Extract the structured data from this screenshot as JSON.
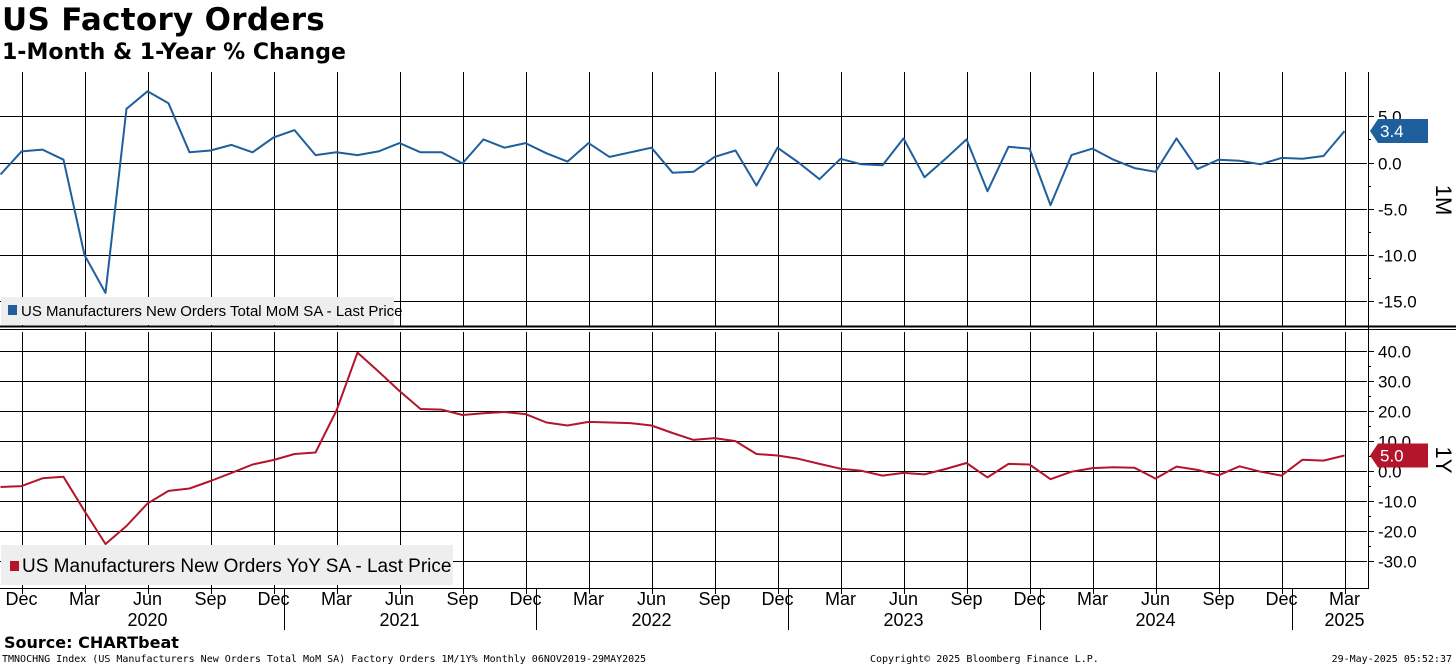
{
  "chart_data": [
    {
      "type": "line",
      "title": "US Factory Orders",
      "subtitle": "1-Month & 1-Year % Change",
      "panel_label": "1M",
      "legend": "US Manufacturers New Orders Total MoM SA - Last Price",
      "color": "#1f5f9e",
      "last_value_label": "3.4",
      "last_value": 3.4,
      "ylim": [
        -18,
        10
      ],
      "yticks": [
        5,
        0,
        -5,
        -10,
        -15
      ],
      "ytick_labels": [
        "5.0",
        "0.0",
        "-5.0",
        "-10.0",
        "-15.0"
      ],
      "x_start": "2019-11",
      "values": [
        -1.3,
        1.2,
        1.4,
        0.3,
        -10.0,
        -14.1,
        5.8,
        7.7,
        6.4,
        1.1,
        1.3,
        1.9,
        1.1,
        2.7,
        3.5,
        0.8,
        1.1,
        0.8,
        1.2,
        2.1,
        1.1,
        1.1,
        -0.1,
        2.5,
        1.6,
        2.1,
        1.0,
        0.1,
        2.1,
        0.6,
        1.1,
        1.6,
        -1.1,
        -1.0,
        0.6,
        1.3,
        -2.5,
        1.6,
        0.0,
        -1.8,
        0.4,
        -0.2,
        -0.3,
        2.6,
        -1.6,
        0.4,
        2.5,
        -3.1,
        1.7,
        1.5,
        -4.6,
        0.8,
        1.5,
        0.3,
        -0.6,
        -1.0,
        2.6,
        -0.7,
        0.3,
        0.2,
        -0.2,
        0.5,
        0.4,
        0.7,
        3.4
      ]
    },
    {
      "type": "line",
      "panel_label": "1Y",
      "legend": "US Manufacturers New Orders YoY SA - Last Price",
      "color": "#b5152b",
      "last_value_label": "5.0",
      "last_value": 5.0,
      "ylim": [
        -37,
        48
      ],
      "yticks": [
        40,
        30,
        20,
        10,
        0,
        -10,
        -20,
        -30
      ],
      "ytick_labels": [
        "40.0",
        "30.0",
        "20.0",
        "10.0",
        "0.0",
        "-10.0",
        "-20.0",
        "-30.0"
      ],
      "x_start": "2019-11",
      "values": [
        -5.5,
        -5.2,
        -2.6,
        -2.1,
        -13.5,
        -24.5,
        -18.5,
        -11.0,
        -6.8,
        -6.0,
        -3.5,
        -0.8,
        2.0,
        3.5,
        5.5,
        6.0,
        20.0,
        39.3,
        33.0,
        26.5,
        20.5,
        20.3,
        18.5,
        19.1,
        19.5,
        18.8,
        16.0,
        15.0,
        16.2,
        16.0,
        15.8,
        15.0,
        12.5,
        10.2,
        10.8,
        9.8,
        5.5,
        5.0,
        3.9,
        2.2,
        0.6,
        -0.1,
        -1.7,
        -0.8,
        -1.3,
        0.5,
        2.5,
        -2.3,
        2.2,
        2.0,
        -2.9,
        -0.4,
        0.8,
        1.1,
        0.9,
        -2.7,
        1.3,
        0.2,
        -1.6,
        1.4,
        -0.4,
        -1.7,
        3.6,
        3.3,
        5.0
      ]
    }
  ],
  "x_axis": {
    "month_ticks": [
      {
        "date": "2019-12",
        "label": "Dec"
      },
      {
        "date": "2020-03",
        "label": "Mar"
      },
      {
        "date": "2020-06",
        "label": "Jun"
      },
      {
        "date": "2020-09",
        "label": "Sep"
      },
      {
        "date": "2020-12",
        "label": "Dec"
      },
      {
        "date": "2021-03",
        "label": "Mar"
      },
      {
        "date": "2021-06",
        "label": "Jun"
      },
      {
        "date": "2021-09",
        "label": "Sep"
      },
      {
        "date": "2021-12",
        "label": "Dec"
      },
      {
        "date": "2022-03",
        "label": "Mar"
      },
      {
        "date": "2022-06",
        "label": "Jun"
      },
      {
        "date": "2022-09",
        "label": "Sep"
      },
      {
        "date": "2022-12",
        "label": "Dec"
      },
      {
        "date": "2023-03",
        "label": "Mar"
      },
      {
        "date": "2023-06",
        "label": "Jun"
      },
      {
        "date": "2023-09",
        "label": "Sep"
      },
      {
        "date": "2023-12",
        "label": "Dec"
      },
      {
        "date": "2024-03",
        "label": "Mar"
      },
      {
        "date": "2024-06",
        "label": "Jun"
      },
      {
        "date": "2024-09",
        "label": "Sep"
      },
      {
        "date": "2024-12",
        "label": "Dec"
      },
      {
        "date": "2025-03",
        "label": "Mar"
      }
    ],
    "year_labels": [
      {
        "date": "2020-06",
        "label": "2020"
      },
      {
        "date": "2021-06",
        "label": "2021"
      },
      {
        "date": "2022-06",
        "label": "2022"
      },
      {
        "date": "2023-06",
        "label": "2023"
      },
      {
        "date": "2024-06",
        "label": "2024"
      },
      {
        "date": "2025-03",
        "label": "2025"
      }
    ]
  },
  "header": {
    "title": "US Factory Orders",
    "subtitle": "1-Month & 1-Year % Change"
  },
  "footer": {
    "source": "Source: CHARTbeat",
    "description": "TMNOCHNG Index (US Manufacturers New Orders Total MoM SA) Factory Orders 1M/1Y%  Monthly 06NOV2019-29MAY2025",
    "copyright": "Copyright© 2025 Bloomberg Finance L.P.",
    "timestamp": "29-May-2025 05:52:37"
  }
}
